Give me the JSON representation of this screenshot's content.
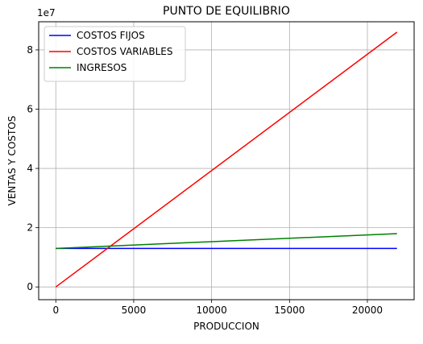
{
  "chart_data": {
    "type": "line",
    "title": "PUNTO DE EQUILIBRIO",
    "xlabel": "PRODUCCION",
    "ylabel": "VENTAS Y COSTOS",
    "y_offset_label": "1e7",
    "xlim": [
      -1100,
      23000
    ],
    "ylim": [
      -0.43,
      8.95
    ],
    "x_ticks": [
      0,
      5000,
      10000,
      15000,
      20000
    ],
    "x_tick_labels": [
      "0",
      "5000",
      "10000",
      "15000",
      "20000"
    ],
    "y_ticks": [
      0,
      2,
      4,
      6,
      8
    ],
    "y_tick_labels": [
      "0",
      "2",
      "4",
      "6",
      "8"
    ],
    "grid": true,
    "legend_position": "upper-left",
    "series": [
      {
        "name": "COSTOS FIJOS",
        "color": "#0000ff",
        "x": [
          0,
          21900
        ],
        "y": [
          1.3,
          1.3
        ]
      },
      {
        "name": "COSTOS VARIABLES",
        "color": "#ff0000",
        "x": [
          0,
          21900
        ],
        "y": [
          0,
          8.6
        ]
      },
      {
        "name": "INGRESOS",
        "color": "#008000",
        "x": [
          0,
          21900
        ],
        "y": [
          1.3,
          1.8
        ]
      }
    ]
  }
}
